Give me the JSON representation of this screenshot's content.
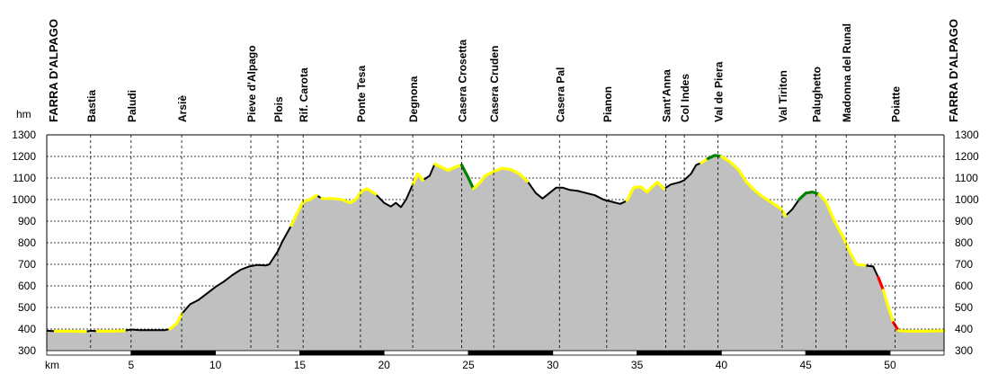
{
  "chart_data": {
    "type": "area",
    "ylabel": "hm",
    "xlabel": "km",
    "xlim": [
      0,
      53.2
    ],
    "ylim": [
      300,
      1300
    ],
    "x_ticks": [
      5,
      10,
      15,
      20,
      25,
      30,
      35,
      40,
      45,
      50
    ],
    "y_ticks": [
      300,
      400,
      500,
      600,
      700,
      800,
      900,
      1000,
      1100,
      1200,
      1300
    ],
    "grid": true,
    "colors": {
      "fill": "#c0c0c0",
      "line": "#000000",
      "easy": "#ffff00",
      "moderate": "#008000",
      "steep": "#ff0000"
    },
    "profile": [
      [
        0,
        392
      ],
      [
        0.5,
        390
      ],
      [
        1.5,
        390
      ],
      [
        2.3,
        388
      ],
      [
        2.6,
        392
      ],
      [
        3.0,
        390
      ],
      [
        4.0,
        390
      ],
      [
        4.6,
        392
      ],
      [
        5.0,
        398
      ],
      [
        5.5,
        395
      ],
      [
        6.5,
        395
      ],
      [
        7.0,
        395
      ],
      [
        7.3,
        400
      ],
      [
        7.7,
        425
      ],
      [
        8.0,
        470
      ],
      [
        8.5,
        515
      ],
      [
        9.0,
        535
      ],
      [
        9.5,
        565
      ],
      [
        10.0,
        595
      ],
      [
        10.5,
        620
      ],
      [
        11.0,
        650
      ],
      [
        11.5,
        675
      ],
      [
        12.0,
        690
      ],
      [
        12.5,
        697
      ],
      [
        13.0,
        695
      ],
      [
        13.2,
        700
      ],
      [
        13.7,
        760
      ],
      [
        14.0,
        810
      ],
      [
        14.5,
        880
      ],
      [
        14.8,
        930
      ],
      [
        15.2,
        990
      ],
      [
        15.6,
        1000
      ],
      [
        16.0,
        1020
      ],
      [
        16.3,
        1005
      ],
      [
        17.0,
        1005
      ],
      [
        17.5,
        1000
      ],
      [
        18.0,
        985
      ],
      [
        18.3,
        1000
      ],
      [
        18.7,
        1040
      ],
      [
        19.0,
        1050
      ],
      [
        19.5,
        1025
      ],
      [
        20.0,
        985
      ],
      [
        20.4,
        968
      ],
      [
        20.7,
        985
      ],
      [
        21.0,
        965
      ],
      [
        21.3,
        1000
      ],
      [
        21.7,
        1070
      ],
      [
        22.0,
        1120
      ],
      [
        22.3,
        1090
      ],
      [
        22.7,
        1110
      ],
      [
        23.0,
        1165
      ],
      [
        23.4,
        1150
      ],
      [
        23.8,
        1135
      ],
      [
        24.2,
        1150
      ],
      [
        24.6,
        1160
      ],
      [
        25.0,
        1100
      ],
      [
        25.3,
        1050
      ],
      [
        25.7,
        1080
      ],
      [
        26.0,
        1110
      ],
      [
        26.5,
        1130
      ],
      [
        27.0,
        1145
      ],
      [
        27.5,
        1140
      ],
      [
        28.0,
        1120
      ],
      [
        28.5,
        1085
      ],
      [
        29.0,
        1030
      ],
      [
        29.4,
        1005
      ],
      [
        29.8,
        1030
      ],
      [
        30.2,
        1055
      ],
      [
        30.6,
        1055
      ],
      [
        31.0,
        1045
      ],
      [
        31.5,
        1040
      ],
      [
        32.0,
        1030
      ],
      [
        32.5,
        1020
      ],
      [
        33.0,
        1000
      ],
      [
        33.5,
        990
      ],
      [
        34.0,
        980
      ],
      [
        34.4,
        995
      ],
      [
        34.8,
        1055
      ],
      [
        35.2,
        1060
      ],
      [
        35.6,
        1035
      ],
      [
        35.9,
        1060
      ],
      [
        36.2,
        1080
      ],
      [
        36.6,
        1050
      ],
      [
        37.0,
        1070
      ],
      [
        37.5,
        1080
      ],
      [
        37.8,
        1090
      ],
      [
        38.2,
        1120
      ],
      [
        38.5,
        1160
      ],
      [
        38.8,
        1170
      ],
      [
        39.2,
        1190
      ],
      [
        39.6,
        1205
      ],
      [
        40.0,
        1200
      ],
      [
        40.5,
        1175
      ],
      [
        41.0,
        1140
      ],
      [
        41.5,
        1080
      ],
      [
        42.0,
        1040
      ],
      [
        42.5,
        1010
      ],
      [
        43.0,
        985
      ],
      [
        43.5,
        960
      ],
      [
        43.8,
        925
      ],
      [
        44.2,
        955
      ],
      [
        44.6,
        1000
      ],
      [
        45.0,
        1030
      ],
      [
        45.4,
        1035
      ],
      [
        45.8,
        1025
      ],
      [
        46.2,
        990
      ],
      [
        46.7,
        900
      ],
      [
        47.2,
        830
      ],
      [
        47.6,
        760
      ],
      [
        48.0,
        700
      ],
      [
        48.5,
        695
      ],
      [
        49.0,
        690
      ],
      [
        49.3,
        640
      ],
      [
        49.6,
        580
      ],
      [
        49.9,
        500
      ],
      [
        50.2,
        430
      ],
      [
        50.5,
        393
      ],
      [
        51.0,
        390
      ],
      [
        52.0,
        390
      ],
      [
        53.2,
        392
      ]
    ],
    "highlights": [
      {
        "type": "easy",
        "from": 0.5,
        "to": 2.3
      },
      {
        "type": "easy",
        "from": 3.0,
        "to": 4.6
      },
      {
        "type": "easy",
        "from": 7.3,
        "to": 8.0
      },
      {
        "type": "easy",
        "from": 14.5,
        "to": 16.0
      },
      {
        "type": "easy",
        "from": 16.3,
        "to": 19.5
      },
      {
        "type": "easy",
        "from": 21.7,
        "to": 22.3
      },
      {
        "type": "easy",
        "from": 23.0,
        "to": 24.6
      },
      {
        "type": "moderate",
        "from": 24.6,
        "to": 25.3
      },
      {
        "type": "easy",
        "from": 25.3,
        "to": 28.5
      },
      {
        "type": "easy",
        "from": 34.4,
        "to": 36.6
      },
      {
        "type": "easy",
        "from": 38.8,
        "to": 39.2
      },
      {
        "type": "moderate",
        "from": 39.2,
        "to": 40.0
      },
      {
        "type": "easy",
        "from": 40.0,
        "to": 43.8
      },
      {
        "type": "moderate",
        "from": 44.6,
        "to": 45.8
      },
      {
        "type": "easy",
        "from": 45.8,
        "to": 48.5
      },
      {
        "type": "steep",
        "from": 49.3,
        "to": 49.6
      },
      {
        "type": "easy",
        "from": 49.6,
        "to": 50.2
      },
      {
        "type": "steep",
        "from": 50.2,
        "to": 50.5
      },
      {
        "type": "easy",
        "from": 50.5,
        "to": 53.2
      }
    ],
    "waypoints": [
      {
        "name": "FARRA D'ALPAGO",
        "km": 0,
        "edge": "left"
      },
      {
        "name": "Bastia",
        "km": 2.6
      },
      {
        "name": "Paludi",
        "km": 5.0
      },
      {
        "name": "Arsiè",
        "km": 8.0
      },
      {
        "name": "Pieve d'Alpago",
        "km": 12.1
      },
      {
        "name": "Plois",
        "km": 13.7
      },
      {
        "name": "Rif. Carota",
        "km": 15.2
      },
      {
        "name": "Ponte Tesa",
        "km": 18.6
      },
      {
        "name": "Degnona",
        "km": 21.7
      },
      {
        "name": "Casera Crosetta",
        "km": 24.6
      },
      {
        "name": "Casera Cruden",
        "km": 26.5
      },
      {
        "name": "Casera Pal",
        "km": 30.4
      },
      {
        "name": "Pianon",
        "km": 33.2
      },
      {
        "name": "Sant'Anna",
        "km": 36.7
      },
      {
        "name": "Col Indes",
        "km": 37.8
      },
      {
        "name": "Val de Piera",
        "km": 39.8
      },
      {
        "name": "Val Tiriton",
        "km": 43.6
      },
      {
        "name": "Palughetto",
        "km": 45.6
      },
      {
        "name": "Madonna del Runal",
        "km": 47.4
      },
      {
        "name": "Poiatte",
        "km": 50.3
      },
      {
        "name": "FARRA D'ALPAGO",
        "km": 53.2,
        "edge": "right"
      }
    ]
  }
}
